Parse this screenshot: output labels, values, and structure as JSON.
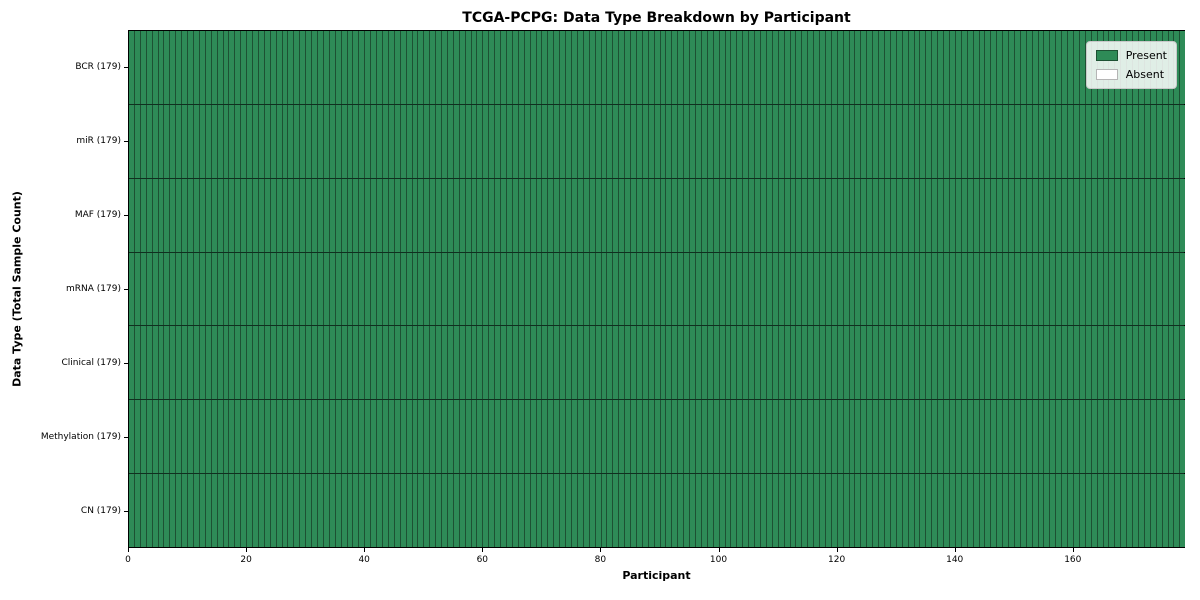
{
  "chart_data": {
    "type": "heatmap",
    "title": "TCGA-PCPG: Data Type Breakdown by Participant",
    "xlabel": "Participant",
    "ylabel": "Data Type (Total Sample Count)",
    "x_range": [
      0,
      179
    ],
    "x_ticks": [
      0,
      20,
      40,
      60,
      80,
      100,
      120,
      140,
      160
    ],
    "n_participants": 179,
    "rows": [
      {
        "label": "BCR (179)",
        "data_type": "BCR",
        "total_samples": 179,
        "present_count": 179,
        "absent_count": 0
      },
      {
        "label": "miR (179)",
        "data_type": "miR",
        "total_samples": 179,
        "present_count": 179,
        "absent_count": 0
      },
      {
        "label": "MAF (179)",
        "data_type": "MAF",
        "total_samples": 179,
        "present_count": 179,
        "absent_count": 0
      },
      {
        "label": "mRNA (179)",
        "data_type": "mRNA",
        "total_samples": 179,
        "present_count": 179,
        "absent_count": 0
      },
      {
        "label": "Clinical (179)",
        "data_type": "Clinical",
        "total_samples": 179,
        "present_count": 179,
        "absent_count": 0
      },
      {
        "label": "Methylation (179)",
        "data_type": "Methylation",
        "total_samples": 179,
        "present_count": 179,
        "absent_count": 0
      },
      {
        "label": "CN (179)",
        "data_type": "CN",
        "total_samples": 179,
        "present_count": 179,
        "absent_count": 0
      }
    ],
    "legend": {
      "position": "upper right",
      "entries": [
        {
          "label": "Present",
          "color": "#2e8b57"
        },
        {
          "label": "Absent",
          "color": "#ffffff"
        }
      ]
    },
    "colors": {
      "present": "#2e8b57",
      "absent": "#ffffff",
      "cell_border": "#1d5133",
      "row_separator": "#10301f",
      "axis": "#000000"
    },
    "grid": "cell-borders",
    "legend_on": true
  }
}
